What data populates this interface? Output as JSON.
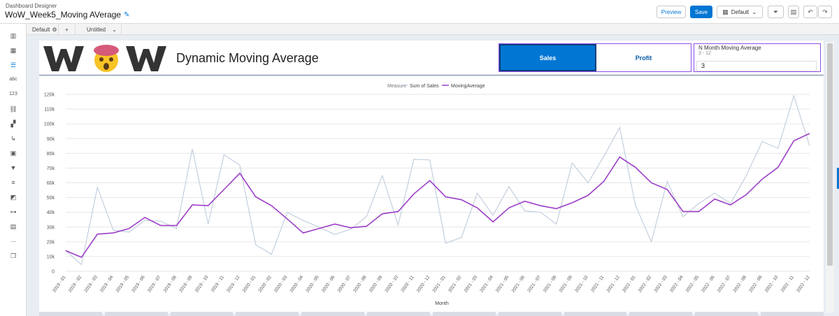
{
  "header": {
    "app_label": "Dashboard Designer",
    "title": "WoW_Week5_Moving AVerage",
    "preview_label": "Preview",
    "save_label": "Save",
    "view_label": "Default",
    "filter_badge": "0"
  },
  "tabs": {
    "default_label": "Default",
    "add_label": "+",
    "untitled_label": "Untitled"
  },
  "page": {
    "logo_text": "WoW",
    "title": "Dynamic Moving Average"
  },
  "measure_toggle": {
    "options": [
      "Sales",
      "Profit"
    ],
    "selected": "Sales"
  },
  "n_month": {
    "label": "N Month Moving Average",
    "range": "3 - 12",
    "value": "3"
  },
  "colors": {
    "accent": "#0176d3",
    "sales_line": "#c3d0df",
    "moving_line": "#9c3fc7",
    "border_purple": "#9050e9"
  },
  "chart_data": {
    "type": "line",
    "legend_title": "Measure",
    "legend_position": "top-center",
    "xlabel": "Month",
    "ylabel": "",
    "ylim": [
      0,
      120000
    ],
    "y_ticks": [
      "0",
      "10k",
      "20k",
      "30k",
      "40k",
      "50k",
      "60k",
      "70k",
      "80k",
      "90k",
      "100k",
      "110k",
      "120k"
    ],
    "grid": true,
    "categories": [
      "2019 - 01",
      "2019 - 02",
      "2019 - 03",
      "2019 - 04",
      "2019 - 05",
      "2019 - 06",
      "2019 - 07",
      "2019 - 08",
      "2019 - 09",
      "2019 - 10",
      "2019 - 11",
      "2019 - 12",
      "2020 - 01",
      "2020 - 02",
      "2020 - 03",
      "2020 - 04",
      "2020 - 05",
      "2020 - 06",
      "2020 - 07",
      "2020 - 08",
      "2020 - 09",
      "2020 - 10",
      "2020 - 11",
      "2020 - 12",
      "2021 - 01",
      "2021 - 02",
      "2021 - 03",
      "2021 - 04",
      "2021 - 05",
      "2021 - 06",
      "2021 - 07",
      "2021 - 08",
      "2021 - 09",
      "2021 - 10",
      "2021 - 11",
      "2021 - 12",
      "2022 - 01",
      "2022 - 02",
      "2022 - 03",
      "2022 - 04",
      "2022 - 05",
      "2022 - 06",
      "2022 - 07",
      "2022 - 08",
      "2022 - 09",
      "2022 - 10",
      "2022 - 11",
      "2022 - 12"
    ],
    "series": [
      {
        "name": "Sum of Sales",
        "values": [
          14000,
          4500,
          57000,
          28000,
          26500,
          34500,
          34000,
          29000,
          83000,
          32000,
          79000,
          72000,
          18000,
          11500,
          40000,
          34500,
          30000,
          25000,
          28500,
          37000,
          65000,
          31500,
          76000,
          75500,
          19000,
          23000,
          53000,
          38000,
          57500,
          41000,
          40000,
          32000,
          73500,
          60000,
          78000,
          97500,
          44500,
          20000,
          61000,
          37000,
          46000,
          53000,
          46000,
          65000,
          88000,
          83500,
          119000,
          85000
        ]
      },
      {
        "name": "MovingAverage",
        "values": [
          14000,
          9500,
          25200,
          26000,
          29000,
          36500,
          31000,
          31000,
          45000,
          44500,
          55500,
          66500,
          50500,
          44500,
          35500,
          26000,
          29000,
          32000,
          29500,
          30500,
          39000,
          40500,
          52500,
          61500,
          50500,
          48500,
          43000,
          33500,
          43000,
          47500,
          44500,
          42500,
          46500,
          51500,
          61000,
          77500,
          70500,
          60000,
          55500,
          40500,
          40500,
          49000,
          45000,
          52000,
          62500,
          70500,
          88500,
          93500
        ]
      }
    ]
  }
}
